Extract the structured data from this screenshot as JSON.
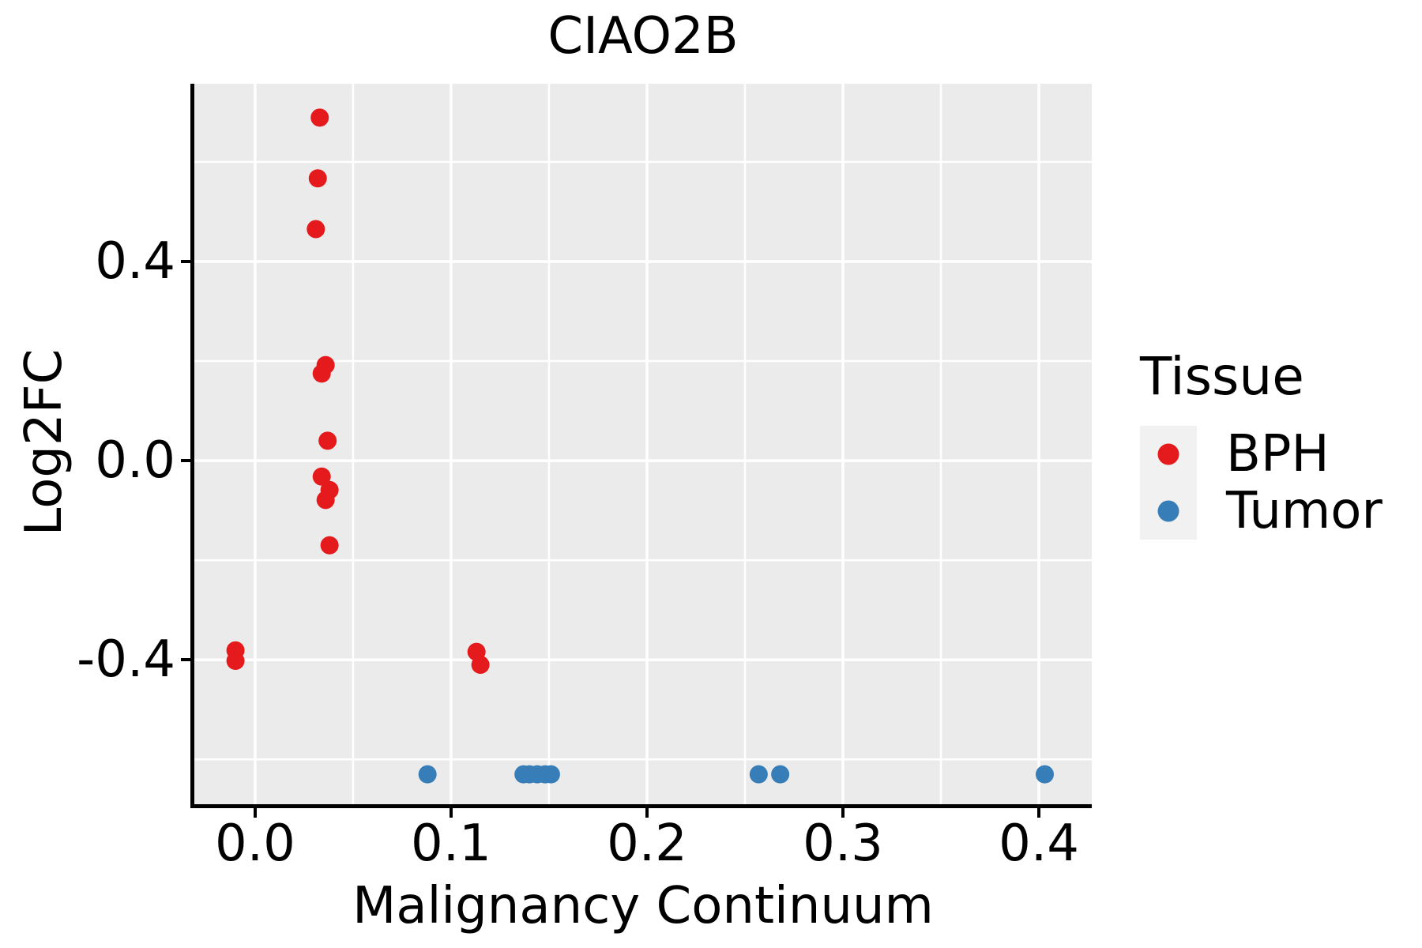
{
  "title": "CIAO2B",
  "legend": {
    "title": "Tissue",
    "entries": [
      {
        "label": "BPH",
        "color": "#E41A1C"
      },
      {
        "label": "Tumor",
        "color": "#377EB8"
      }
    ]
  },
  "colors": {
    "panel_background": "#EBEBEB",
    "grid": "#FFFFFF",
    "axis": "#000000",
    "text": "#000000",
    "legend_key_background": "#F1F1F1",
    "bph": "#E41A1C",
    "tumor": "#377EB8"
  },
  "chart_data": {
    "type": "scatter",
    "title": "CIAO2B",
    "xlabel": "Malignancy Continuum",
    "ylabel": "Log2FC",
    "xlim": [
      -0.031,
      0.427
    ],
    "ylim": [
      -0.69,
      0.757
    ],
    "grid": "on",
    "legend_position": "right",
    "x_ticks": {
      "values": [
        0.0,
        0.1,
        0.2,
        0.3,
        0.4
      ],
      "labels": [
        "0.0",
        "0.1",
        "0.2",
        "0.3",
        "0.4"
      ],
      "minor": [
        0.05,
        0.15,
        0.25,
        0.35
      ]
    },
    "y_ticks": {
      "values": [
        0.4,
        0.0,
        -0.4
      ],
      "labels": [
        "0.4",
        "0.0",
        "-0.4"
      ],
      "minor": [
        0.6,
        0.2,
        -0.2,
        -0.6
      ]
    },
    "series": [
      {
        "name": "BPH",
        "color": "#E41A1C",
        "points": [
          [
            0.033,
            0.689
          ],
          [
            0.032,
            0.567
          ],
          [
            0.031,
            0.465
          ],
          [
            0.036,
            0.192
          ],
          [
            0.034,
            0.175
          ],
          [
            0.037,
            0.04
          ],
          [
            0.034,
            -0.032
          ],
          [
            0.038,
            -0.059
          ],
          [
            0.036,
            -0.079
          ],
          [
            0.038,
            -0.17
          ],
          [
            -0.01,
            -0.381
          ],
          [
            -0.01,
            -0.402
          ],
          [
            0.113,
            -0.384
          ],
          [
            0.115,
            -0.41
          ]
        ]
      },
      {
        "name": "Tumor",
        "color": "#377EB8",
        "points": [
          [
            0.088,
            -0.63
          ],
          [
            0.137,
            -0.63
          ],
          [
            0.14,
            -0.63
          ],
          [
            0.144,
            -0.63
          ],
          [
            0.148,
            -0.63
          ],
          [
            0.151,
            -0.63
          ],
          [
            0.257,
            -0.63
          ],
          [
            0.268,
            -0.63
          ],
          [
            0.403,
            -0.63
          ]
        ]
      }
    ]
  }
}
